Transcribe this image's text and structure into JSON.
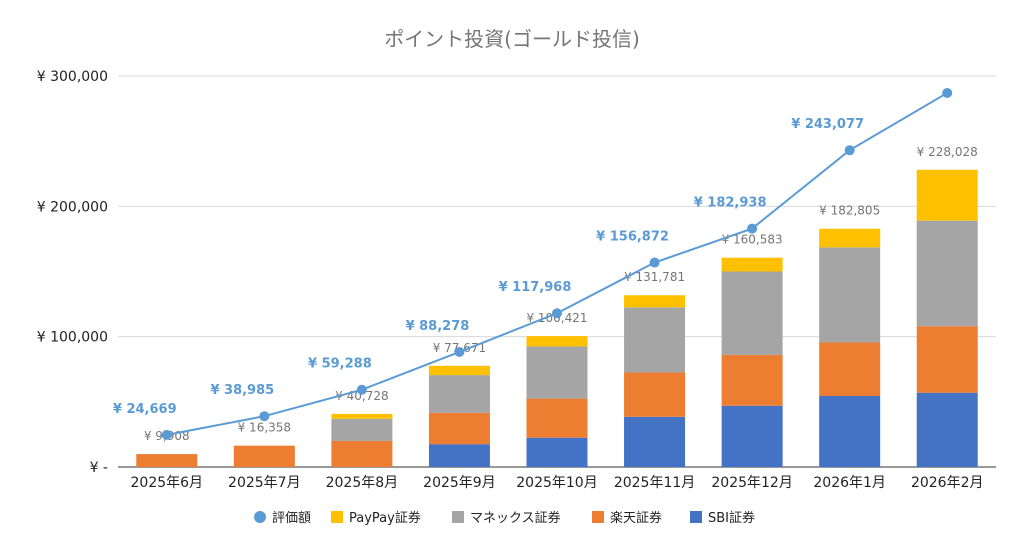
{
  "chart_data": {
    "type": "bar",
    "title": "ポイント投資(ゴールド投信)",
    "categories": [
      "2025年6月",
      "2025年7月",
      "2025年8月",
      "2025年9月",
      "2025年10月",
      "2025年11月",
      "2025年12月",
      "2026年1月",
      "2026年2月"
    ],
    "ylim": [
      0,
      300000
    ],
    "y_ticks": [
      {
        "value": 0,
        "label": "¥ -"
      },
      {
        "value": 100000,
        "label": "¥ 100,000"
      },
      {
        "value": 200000,
        "label": "¥ 200,000"
      },
      {
        "value": 300000,
        "label": "¥ 300,000"
      }
    ],
    "grid": true,
    "legend_position": "bottom",
    "stacked_series": [
      {
        "name": "SBI証券",
        "color": "#4472c4",
        "values": [
          0,
          0,
          0,
          17500,
          22500,
          38500,
          47000,
          54500,
          57000
        ]
      },
      {
        "name": "楽天証券",
        "color": "#ed7d31",
        "values": [
          9908,
          16358,
          20000,
          24000,
          30000,
          34000,
          39000,
          41000,
          51000
        ]
      },
      {
        "name": "マネックス証券",
        "color": "#a5a5a5",
        "values": [
          0,
          0,
          17000,
          29000,
          40000,
          50000,
          64000,
          73000,
          81000
        ]
      },
      {
        "name": "PayPay証券",
        "color": "#ffc000",
        "values": [
          0,
          0,
          3728,
          7171,
          7921,
          9281,
          10583,
          14305,
          39028
        ]
      }
    ],
    "totals": [
      9908,
      16358,
      40728,
      77671,
      100421,
      131781,
      160583,
      182805,
      228028
    ],
    "totals_labels": [
      "¥ 9,908",
      "¥ 16,358",
      "¥ 40,728",
      "¥ 77,671",
      "¥ 100,421",
      "¥ 131,781",
      "¥ 160,583",
      "¥ 182,805",
      "¥ 228,028"
    ],
    "line_series": {
      "name": "評価額",
      "color": "#5b9bd5",
      "values": [
        24669,
        38985,
        59288,
        88278,
        117968,
        156872,
        182938,
        243077,
        287000
      ],
      "labels": [
        "¥ 24,669",
        "¥ 38,985",
        "¥ 59,288",
        "¥ 88,278",
        "¥ 117,968",
        "¥ 156,872",
        "¥ 182,938",
        "¥ 243,077",
        ""
      ]
    },
    "legend": [
      "評価額",
      "PayPay証券",
      "マネックス証券",
      "楽天証券",
      "SBI証券"
    ]
  }
}
